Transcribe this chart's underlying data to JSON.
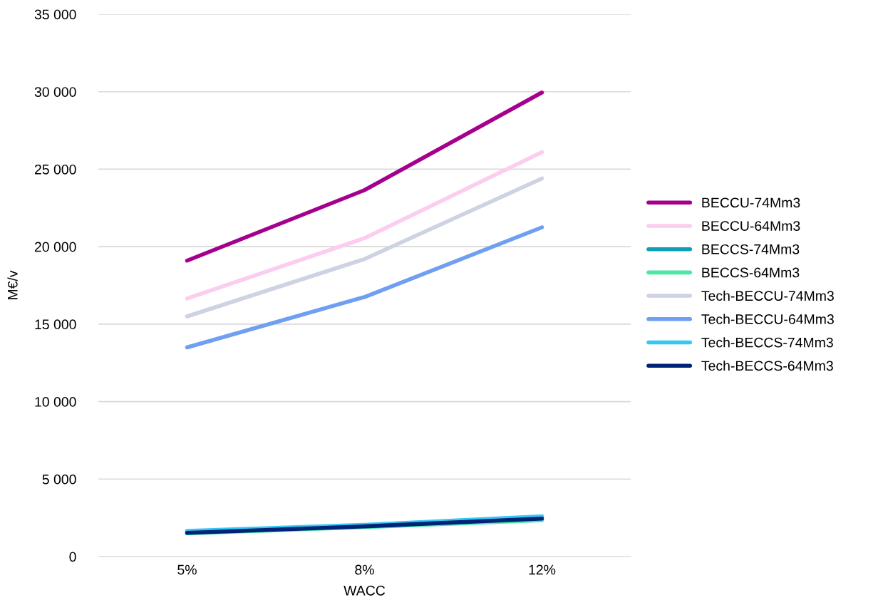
{
  "chart_data": {
    "type": "line",
    "xlabel": "WACC",
    "ylabel": "M€/v",
    "categories": [
      "5%",
      "8%",
      "12%"
    ],
    "ylim": [
      0,
      35000
    ],
    "yticks": [
      0,
      {
        "value": 5000,
        "label": "5 000"
      },
      {
        "value": 10000,
        "label": "10 000"
      },
      {
        "value": 15000,
        "label": "15 000"
      },
      {
        "value": 20000,
        "label": "20 000"
      },
      {
        "value": 25000,
        "label": "25 000"
      },
      {
        "value": 30000,
        "label": "30 000"
      },
      {
        "value": 35000,
        "label": "35 000"
      }
    ],
    "grid": "y",
    "legend": "right",
    "marker": "none",
    "line_style": "solid",
    "series": [
      {
        "name": "BECCU-74Mm3",
        "color": "#a5008d",
        "values": [
          19100,
          23650,
          29950
        ]
      },
      {
        "name": "BECCU-64Mm3",
        "color": "#fbcdee",
        "values": [
          16650,
          20550,
          26100
        ]
      },
      {
        "name": "BECCS-74Mm3",
        "color": "#0d9fb5",
        "values": [
          null,
          null,
          null
        ]
      },
      {
        "name": "BECCS-64Mm3",
        "color": "#4de8a5",
        "values": [
          1500,
          1900,
          2350
        ]
      },
      {
        "name": "Tech-BECCU-74Mm3",
        "color": "#cdd3e2",
        "values": [
          15500,
          19200,
          24400
        ]
      },
      {
        "name": "Tech-BECCU-64Mm3",
        "color": "#6f9ff2",
        "values": [
          13500,
          16750,
          21250
        ]
      },
      {
        "name": "Tech-BECCS-74Mm3",
        "color": "#35c8f5",
        "values": [
          1650,
          2050,
          2600
        ]
      },
      {
        "name": "Tech-BECCS-64Mm3",
        "color": "#002378",
        "values": [
          1530,
          1950,
          2450
        ]
      }
    ]
  }
}
